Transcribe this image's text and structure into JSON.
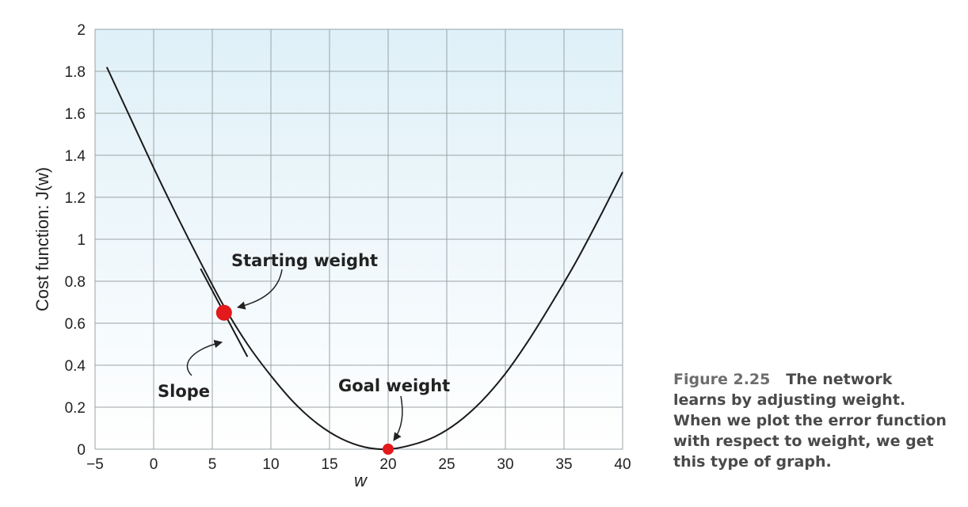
{
  "chart_data": {
    "type": "line",
    "title": "",
    "xlabel": "w",
    "ylabel": "Cost function: J(w)",
    "xlim": [
      -5,
      40
    ],
    "ylim": [
      0,
      2
    ],
    "xticks": [
      -5,
      0,
      5,
      10,
      15,
      20,
      25,
      30,
      35,
      40
    ],
    "xtick_labels": [
      "−5",
      "0",
      "5",
      "10",
      "15",
      "20",
      "25",
      "30",
      "35",
      "40"
    ],
    "yticks": [
      0,
      0.2,
      0.4,
      0.6,
      0.8,
      1,
      1.2,
      1.4,
      1.6,
      1.8,
      2
    ],
    "ytick_labels": [
      "0",
      "0.2",
      "0.4",
      "0.6",
      "0.8",
      "1",
      "1.2",
      "1.4",
      "1.6",
      "1.8",
      "2"
    ],
    "grid": true,
    "series": [
      {
        "x": [
          -4,
          -2,
          0,
          2,
          4,
          6,
          8,
          10,
          12,
          14,
          16,
          18,
          20,
          22,
          24,
          26,
          28,
          30,
          32,
          34,
          36,
          38,
          40
        ],
        "y": [
          1.82,
          1.58,
          1.34,
          1.11,
          0.89,
          0.68,
          0.5,
          0.35,
          0.22,
          0.12,
          0.05,
          0.01,
          0.0,
          0.02,
          0.06,
          0.13,
          0.23,
          0.36,
          0.52,
          0.7,
          0.89,
          1.1,
          1.32
        ]
      }
    ],
    "points": [
      {
        "x": 6,
        "y": 0.65,
        "label": "Starting weight",
        "color": "#e3191b"
      },
      {
        "x": 20,
        "y": 0.0,
        "label": "Goal weight",
        "color": "#e3191b"
      }
    ],
    "tangent": {
      "label": "Slope",
      "x": [
        4,
        8
      ],
      "y": [
        0.86,
        0.44
      ]
    },
    "colors": {
      "plot_bg_top": "#dff0f8",
      "plot_bg_bottom": "#ffffff",
      "grid": "#9aa3a8",
      "curve": "#1a1a1a"
    }
  },
  "caption": {
    "figure_number": "Figure 2.25",
    "lines": [
      "The network",
      "learns by adjusting weight.",
      "When we plot the error function",
      "with respect to weight, we get",
      "this type of graph."
    ]
  }
}
